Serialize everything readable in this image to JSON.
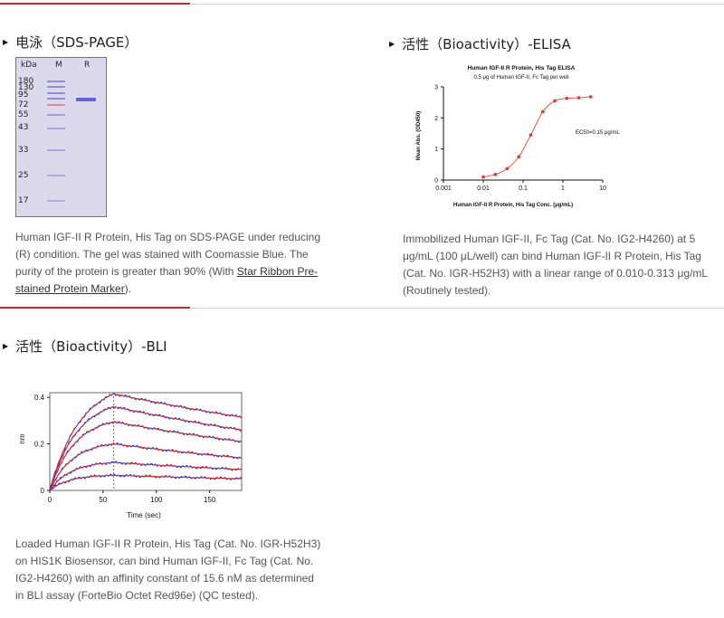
{
  "gel_section": {
    "title": "电泳（SDS-PAGE）",
    "lane_header_kda": "kDa",
    "lane_header_marker": "M",
    "lane_header_sample": "R",
    "mw_labels": [
      "180",
      "130",
      "95",
      "72",
      "55",
      "43",
      "33",
      "25",
      "17"
    ],
    "description": "Human IGF-II R Protein, His Tag on SDS-PAGE under reducing (R) condition. The gel was stained with Coomassie Blue. The purity of the protein is greater than 90% (With ",
    "link_text": "Star Ribbon Pre-stained Protein Marker",
    "description_end": ")."
  },
  "elisa_section": {
    "title": "活性（Bioactivity）-ELISA",
    "description": "Immobilized Human IGF-II, Fc Tag (Cat. No. IG2-H4260) at 5 μg/mL (100 μL/well) can bind Human IGF-II R Protein, His Tag (Cat. No. IGR-H52H3) with a linear range of 0.010-0.313 μg/mL (Routinely tested)."
  },
  "bli_section": {
    "title": "活性（Bioactivity）-BLI",
    "description": "Loaded Human IGF-II R Protein, His Tag (Cat. No. IGR-H52H3) on HIS1K Biosensor, can bind Human IGF-II, Fc Tag (Cat. No. IG2-H4260) with an affinity constant of 15.6 nM as determined in BLI assay (ForteBio Octet Red96e) (QC tested)."
  },
  "chart_data": [
    {
      "type": "scatter",
      "title": "Human IGF-II R Protein, His Tag ELISA",
      "subtitle": "0.5 μg of Human IGF-II, Fc Tag per well",
      "xlabel": "Human IGF-II R Protein, His Tag Conc. (μg/mL)",
      "ylabel": "Mean Abs. (OD450)",
      "x_scale": "log",
      "xlim": [
        0.001,
        10
      ],
      "ylim": [
        0,
        3
      ],
      "x_ticks": [
        "0.001",
        "0.01",
        "0.1",
        "1",
        "10"
      ],
      "y_ticks": [
        "0",
        "1",
        "2",
        "3"
      ],
      "annotation": "EC50=0.15 μg/mL",
      "x": [
        0.01,
        0.02,
        0.04,
        0.078,
        0.156,
        0.313,
        0.625,
        1.25,
        2.5,
        5
      ],
      "y": [
        0.1,
        0.18,
        0.37,
        0.75,
        1.45,
        2.2,
        2.55,
        2.63,
        2.65,
        2.68
      ],
      "colors": {
        "points": "#d93a2f",
        "fit": "#e8584b"
      }
    },
    {
      "type": "line",
      "xlabel": "Time (sec)",
      "ylabel": "nm",
      "xlim": [
        0,
        180
      ],
      "ylim": [
        0,
        0.42
      ],
      "x_ticks": [
        "0",
        "50",
        "100",
        "150"
      ],
      "y_ticks": [
        "0",
        "0.2",
        "0.4"
      ],
      "association_end": 60,
      "series": [
        {
          "values": [
            {
              "x": 0,
              "y": 0
            },
            {
              "x": 60,
              "y": 0.415
            },
            {
              "x": 180,
              "y": 0.315
            }
          ]
        },
        {
          "values": [
            {
              "x": 0,
              "y": 0
            },
            {
              "x": 60,
              "y": 0.36
            },
            {
              "x": 180,
              "y": 0.26
            }
          ]
        },
        {
          "values": [
            {
              "x": 0,
              "y": 0
            },
            {
              "x": 60,
              "y": 0.295
            },
            {
              "x": 180,
              "y": 0.21
            }
          ]
        },
        {
          "values": [
            {
              "x": 0,
              "y": 0
            },
            {
              "x": 60,
              "y": 0.2
            },
            {
              "x": 180,
              "y": 0.14
            }
          ]
        },
        {
          "values": [
            {
              "x": 0,
              "y": 0
            },
            {
              "x": 60,
              "y": 0.12
            },
            {
              "x": 180,
              "y": 0.09
            }
          ]
        },
        {
          "values": [
            {
              "x": 0,
              "y": 0
            },
            {
              "x": 60,
              "y": 0.065
            },
            {
              "x": 180,
              "y": 0.05
            }
          ]
        }
      ],
      "colors": {
        "raw": "#2233cc",
        "fit": "#dd2222",
        "marker": "#dd2222"
      }
    }
  ]
}
